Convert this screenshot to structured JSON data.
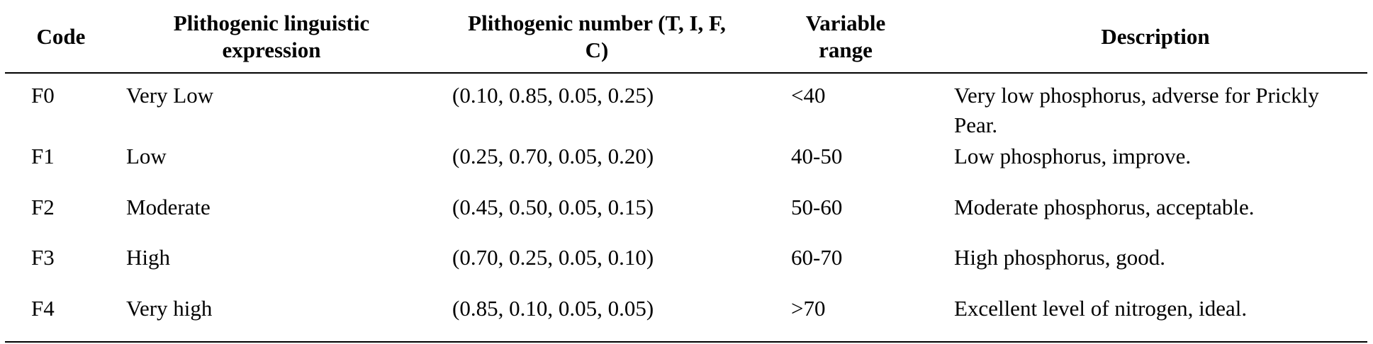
{
  "table": {
    "headers": [
      "Code",
      "Plithogenic linguistic expression",
      "Plithogenic number (T, I, F, C)",
      "Variable range",
      "Description"
    ],
    "rows": [
      {
        "code": "F0",
        "expression": "Very Low",
        "number": "(0.10, 0.85, 0.05, 0.25)",
        "range": "<40",
        "description": "Very low phosphorus, adverse for Prickly Pear."
      },
      {
        "code": "F1",
        "expression": "Low",
        "number": "(0.25, 0.70, 0.05, 0.20)",
        "range": "40-50",
        "description": "Low phosphorus, improve."
      },
      {
        "code": "F2",
        "expression": "Moderate",
        "number": "(0.45, 0.50, 0.05, 0.15)",
        "range": "50-60",
        "description": "Moderate phosphorus, acceptable."
      },
      {
        "code": "F3",
        "expression": "High",
        "number": "(0.70, 0.25, 0.05, 0.10)",
        "range": "60-70",
        "description": "High phosphorus, good."
      },
      {
        "code": "F4",
        "expression": "Very high",
        "number": "(0.85, 0.10, 0.05, 0.05)",
        "range": ">70",
        "description": "Excellent level of nitrogen, ideal."
      }
    ]
  }
}
